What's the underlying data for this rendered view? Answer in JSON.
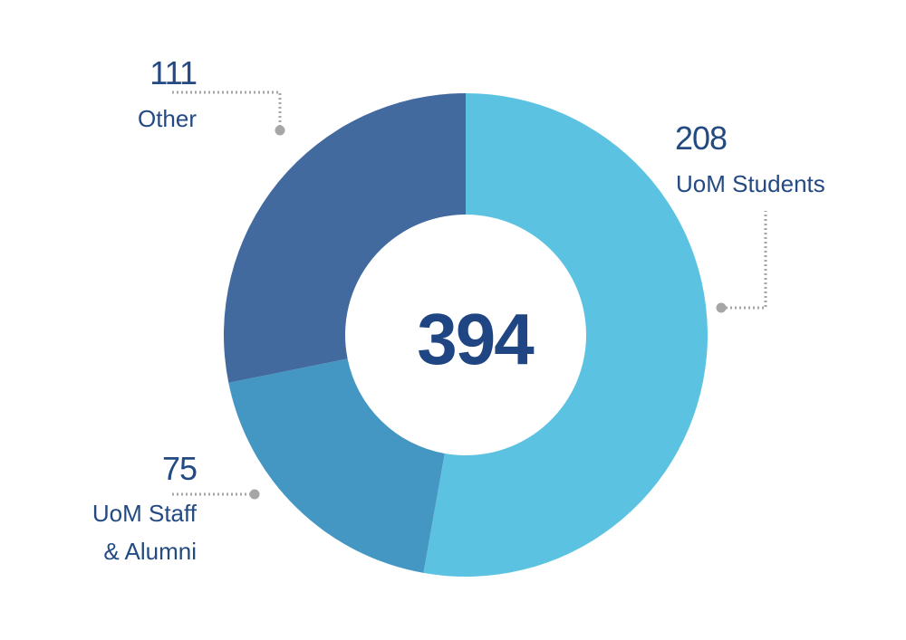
{
  "chart_data": {
    "type": "pie",
    "variant": "donut",
    "total": "394",
    "slices": [
      {
        "label": "UoM Students",
        "value": 208,
        "color": "#5bc3e1"
      },
      {
        "label": "UoM Staff\n& Alumni",
        "value": 75,
        "color": "#4597c3"
      },
      {
        "label": "Other",
        "value": 111,
        "color": "#426a9f"
      }
    ],
    "label_color": "#234a82",
    "leader_color": "#a6a6a6"
  },
  "labels": {
    "students_value": "208",
    "students_label": "UoM Students",
    "staff_value": "75",
    "staff_label_line1": "UoM Staff",
    "staff_label_line2": "& Alumni",
    "other_value": "111",
    "other_label": "Other"
  }
}
